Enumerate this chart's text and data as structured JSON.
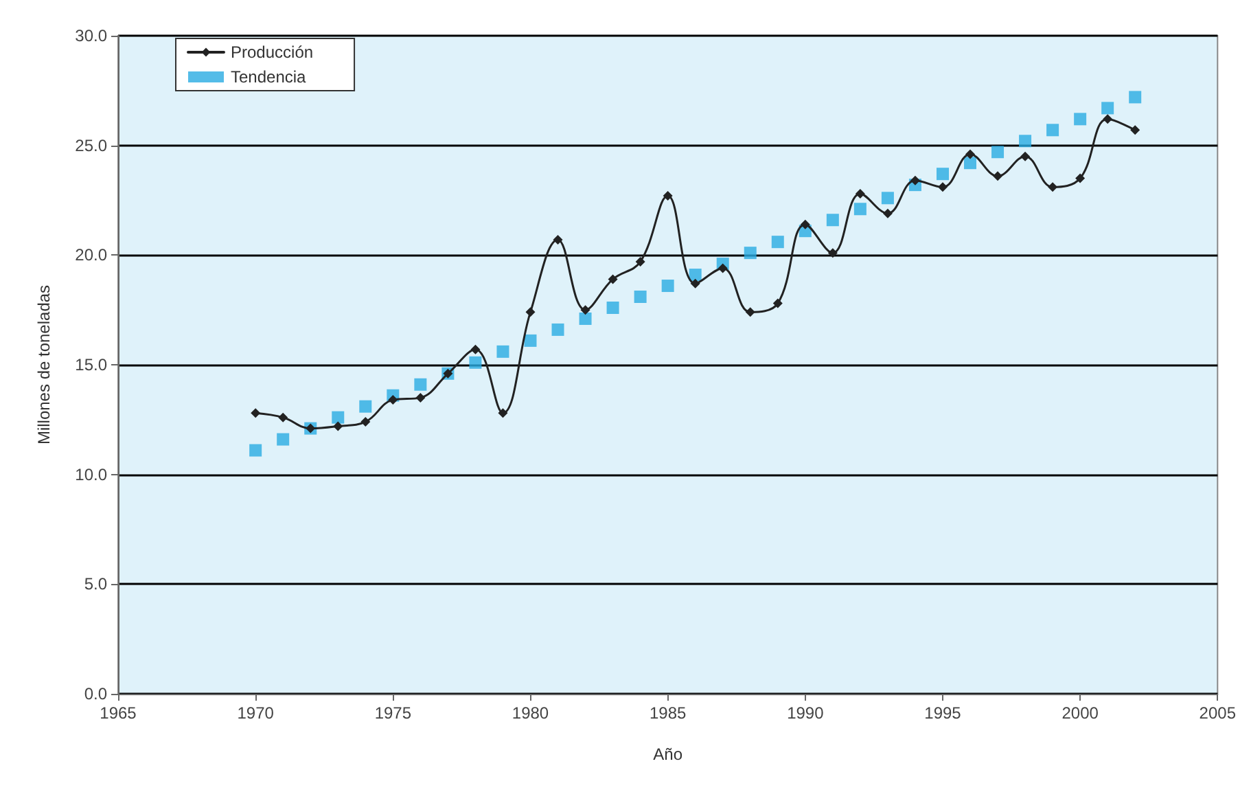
{
  "chart_data": {
    "type": "line",
    "xlabel": "Año",
    "ylabel": "Millones de toneladas",
    "x": [
      1970,
      1971,
      1972,
      1973,
      1974,
      1975,
      1976,
      1977,
      1978,
      1979,
      1980,
      1981,
      1982,
      1983,
      1984,
      1985,
      1986,
      1987,
      1988,
      1989,
      1990,
      1991,
      1992,
      1993,
      1994,
      1995,
      1996,
      1997,
      1998,
      1999,
      2000,
      2001,
      2002
    ],
    "series": [
      {
        "name": "Producción",
        "color": "#222222",
        "marker": "diamond",
        "line_style": "solid",
        "values": [
          12.8,
          12.6,
          12.1,
          12.2,
          12.4,
          13.4,
          13.5,
          14.6,
          15.7,
          12.8,
          17.4,
          20.7,
          17.5,
          18.9,
          19.7,
          22.7,
          18.7,
          19.4,
          17.4,
          17.8,
          21.4,
          20.1,
          22.8,
          21.9,
          23.4,
          23.1,
          24.6,
          23.6,
          24.5,
          23.1,
          23.5,
          26.2,
          25.7
        ]
      },
      {
        "name": "Tendencia",
        "type": "scatter",
        "color": "#29abe2",
        "marker": "square",
        "values": [
          11.1,
          11.6,
          12.1,
          12.6,
          13.1,
          13.6,
          14.1,
          14.6,
          15.1,
          15.6,
          16.1,
          16.6,
          17.1,
          17.6,
          18.1,
          18.6,
          19.1,
          19.6,
          20.1,
          20.6,
          21.1,
          21.6,
          22.1,
          22.6,
          23.2,
          23.7,
          24.2,
          24.7,
          25.2,
          25.7,
          26.2,
          26.7,
          27.2
        ]
      }
    ],
    "xlim": [
      1965,
      2005
    ],
    "xticks": [
      1965,
      1970,
      1975,
      1980,
      1985,
      1990,
      1995,
      2000,
      2005
    ],
    "ylim": [
      0,
      30
    ],
    "yticks": [
      {
        "value": 0,
        "label": "0.0"
      },
      {
        "value": 5,
        "label": "5.0"
      },
      {
        "value": 10,
        "label": "10.0"
      },
      {
        "value": 15,
        "label": "15.0"
      },
      {
        "value": 20,
        "label": "20.0"
      },
      {
        "value": 25,
        "label": "25.0"
      },
      {
        "value": 30,
        "label": "30.0"
      }
    ],
    "grid": "y",
    "legend": "top left"
  }
}
